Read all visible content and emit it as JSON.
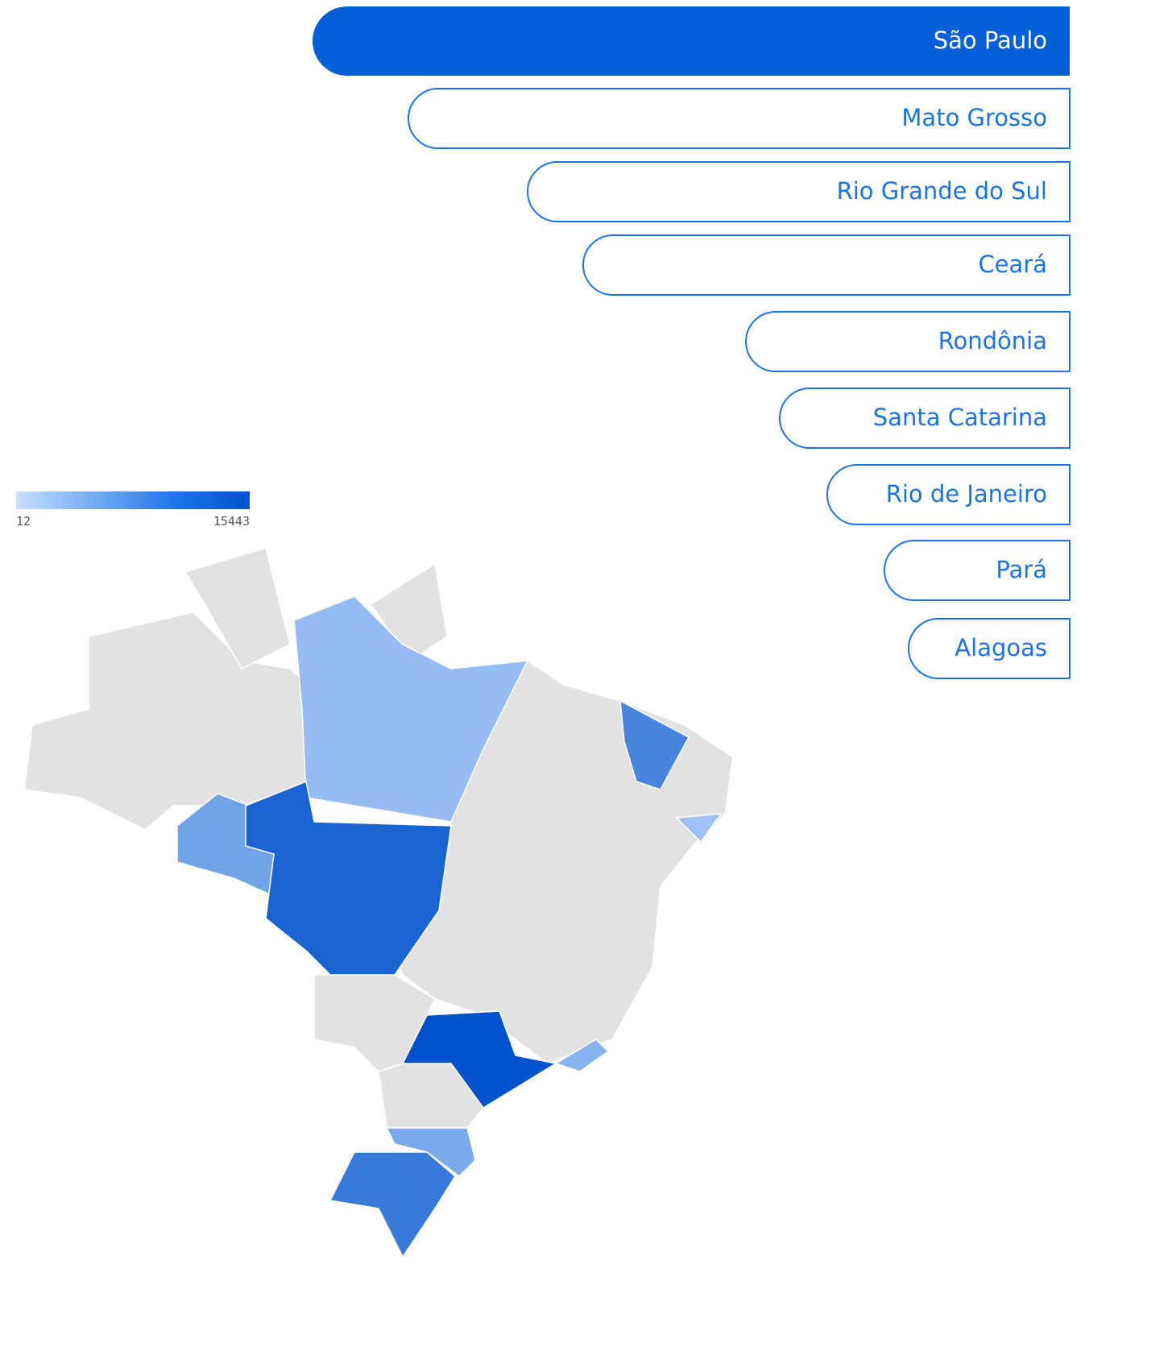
{
  "legend": {
    "min": 12,
    "max": 15443
  },
  "chart_data": {
    "type": "bar",
    "categories": [
      "São Paulo",
      "Mato Grosso",
      "Rio Grande do Sul",
      "Ceará",
      "Rondônia",
      "Santa Catarina",
      "Rio de Janeiro",
      "Pará",
      "Alagoas"
    ],
    "values": [
      15443,
      13488,
      11056,
      9923,
      6604,
      5914,
      4945,
      3779,
      3286
    ]
  }
}
